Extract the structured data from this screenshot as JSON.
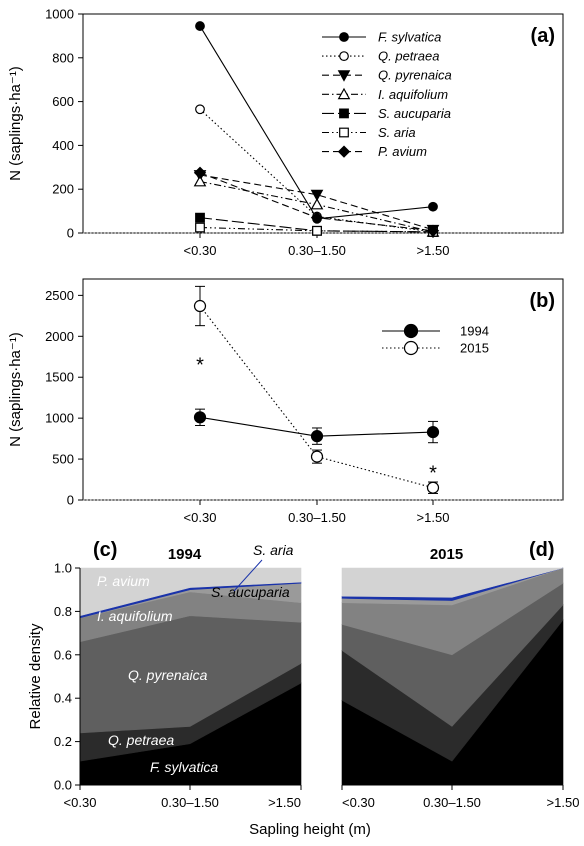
{
  "figure": {
    "xlabel": "Sapling height (m)",
    "categories": [
      "<0.30",
      "0.30–1.50",
      ">1.50"
    ]
  },
  "chart_data": [
    {
      "panel": "(a)",
      "type": "line",
      "categories": [
        "<0.30",
        "0.30–1.50",
        ">1.50"
      ],
      "ylabel": "N (saplings·ha⁻¹)",
      "ylim": [
        0,
        1000
      ],
      "yticks": [
        0,
        200,
        400,
        600,
        800,
        1000
      ],
      "reference_line_y": 0,
      "legend_position": "top-right",
      "series": [
        {
          "name": "F. sylvatica",
          "values": [
            945,
            65,
            120
          ],
          "marker": "circle",
          "fill": "filled",
          "dash": "solid"
        },
        {
          "name": "Q. petraea",
          "values": [
            565,
            75,
            5
          ],
          "marker": "circle",
          "fill": "open",
          "dash": "dotted"
        },
        {
          "name": "Q. pyrenaica",
          "values": [
            265,
            175,
            15
          ],
          "marker": "triangle-down",
          "fill": "filled",
          "dash": "dashed"
        },
        {
          "name": "I. aquifolium",
          "values": [
            235,
            130,
            5
          ],
          "marker": "triangle-up",
          "fill": "open",
          "dash": "dashdot"
        },
        {
          "name": "S. aucuparia",
          "values": [
            70,
            10,
            5
          ],
          "marker": "square",
          "fill": "filled",
          "dash": "longdash"
        },
        {
          "name": "S. aria",
          "values": [
            25,
            10,
            5
          ],
          "marker": "square",
          "fill": "open",
          "dash": "dashdotdot"
        },
        {
          "name": "P. avium",
          "values": [
            275,
            70,
            10
          ],
          "marker": "diamond",
          "fill": "filled",
          "dash": "dashed"
        }
      ]
    },
    {
      "panel": "(b)",
      "type": "line",
      "categories": [
        "<0.30",
        "0.30–1.50",
        ">1.50"
      ],
      "ylabel": "N (saplings·ha⁻¹)",
      "ylim": [
        0,
        2700
      ],
      "yticks": [
        0,
        500,
        1000,
        1500,
        2000,
        2500
      ],
      "reference_line_y": 0,
      "legend_position": "center-right",
      "series": [
        {
          "name": "1994",
          "values": [
            1010,
            780,
            830
          ],
          "errors": [
            100,
            100,
            130
          ],
          "marker": "circle",
          "fill": "filled",
          "dash": "solid"
        },
        {
          "name": "2015",
          "values": [
            2370,
            530,
            150
          ],
          "errors": [
            240,
            80,
            70
          ],
          "marker": "circle",
          "fill": "open",
          "dash": "dotted"
        }
      ],
      "annotations": [
        {
          "text": "*",
          "category": "<0.30",
          "y": 1690
        },
        {
          "text": "*",
          "category": ">1.50",
          "y": 370
        }
      ]
    },
    {
      "panel": "(c)",
      "title": "1994",
      "type": "area",
      "stacked": true,
      "categories": [
        "<0.30",
        "0.30–1.50",
        ">1.50"
      ],
      "ylabel": "Relative density",
      "ylim": [
        0,
        1
      ],
      "yticks": [
        0.0,
        0.2,
        0.4,
        0.6,
        0.8,
        1.0
      ],
      "series": [
        {
          "name": "F. sylvatica",
          "values": [
            0.11,
            0.19,
            0.47
          ],
          "color": "#000000",
          "label_color": "#ffffff"
        },
        {
          "name": "Q. petraea",
          "values": [
            0.13,
            0.08,
            0.09
          ],
          "color": "#2b2b2b",
          "label_color": "#ffffff"
        },
        {
          "name": "Q. pyrenaica",
          "values": [
            0.42,
            0.51,
            0.19
          ],
          "color": "#5f5f5f",
          "label_color": "#ffffff"
        },
        {
          "name": "I. aquifolium",
          "values": [
            0.11,
            0.11,
            0.09
          ],
          "color": "#828282",
          "label_color": "#ffffff"
        },
        {
          "name": "S. aucuparia",
          "values": [
            0.0,
            0.01,
            0.09
          ],
          "color": "#9a9a9a",
          "label_color": "#000000"
        },
        {
          "name": "S. aria",
          "values": [
            0.01,
            0.01,
            0.005
          ],
          "color": "#1a33aa",
          "label_color": "#000000"
        },
        {
          "name": "P. avium",
          "values": [
            0.22,
            0.09,
            0.065
          ],
          "color": "#d3d3d3",
          "label_color": "#ffffff"
        }
      ]
    },
    {
      "panel": "(d)",
      "title": "2015",
      "type": "area",
      "stacked": true,
      "categories": [
        "<0.30",
        "0.30–1.50",
        ">1.50"
      ],
      "ylim": [
        0,
        1
      ],
      "series": [
        {
          "name": "F. sylvatica",
          "values": [
            0.39,
            0.11,
            0.76
          ],
          "color": "#000000"
        },
        {
          "name": "Q. petraea",
          "values": [
            0.23,
            0.16,
            0.07
          ],
          "color": "#2b2b2b"
        },
        {
          "name": "Q. pyrenaica",
          "values": [
            0.12,
            0.33,
            0.1
          ],
          "color": "#5f5f5f"
        },
        {
          "name": "I. aquifolium",
          "values": [
            0.1,
            0.23,
            0.07
          ],
          "color": "#828282"
        },
        {
          "name": "S. aucuparia",
          "values": [
            0.02,
            0.02,
            0.0
          ],
          "color": "#9a9a9a"
        },
        {
          "name": "S. aria",
          "values": [
            0.01,
            0.015,
            0.0
          ],
          "color": "#1a33aa"
        },
        {
          "name": "P. avium",
          "values": [
            0.13,
            0.135,
            0.0
          ],
          "color": "#d3d3d3"
        }
      ]
    }
  ]
}
